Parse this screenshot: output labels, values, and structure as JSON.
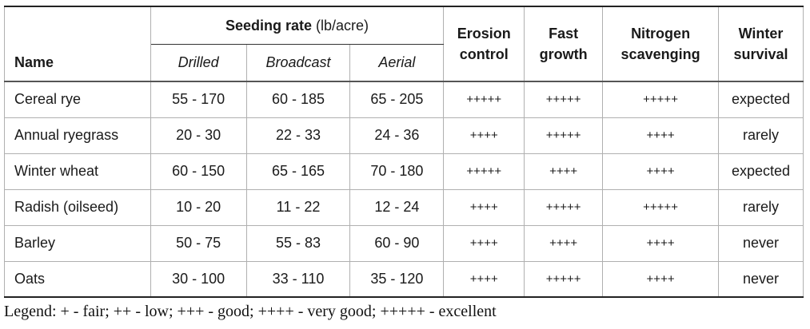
{
  "table": {
    "headers": {
      "name": "Name",
      "seeding_rate_bold": "Seeding rate",
      "seeding_rate_unit": "(lb/acre)",
      "drilled": "Drilled",
      "broadcast": "Broadcast",
      "aerial": "Aerial",
      "erosion_line1": "Erosion",
      "erosion_line2": "control",
      "fast_line1": "Fast",
      "fast_line2": "growth",
      "nitrogen_line1": "Nitrogen",
      "nitrogen_line2": "scavenging",
      "winter_line1": "Winter",
      "winter_line2": "survival"
    },
    "rows": [
      {
        "name": "Cereal rye",
        "drilled": "55 - 170",
        "broadcast": "60 - 185",
        "aerial": "65 - 205",
        "erosion": "+++++",
        "fast": "+++++",
        "nitrogen": "+++++",
        "winter": "expected"
      },
      {
        "name": "Annual ryegrass",
        "drilled": "20 - 30",
        "broadcast": "22 - 33",
        "aerial": "24 - 36",
        "erosion": "++++",
        "fast": "+++++",
        "nitrogen": "++++",
        "winter": "rarely"
      },
      {
        "name": "Winter wheat",
        "drilled": "60 - 150",
        "broadcast": "65 - 165",
        "aerial": "70 - 180",
        "erosion": "+++++",
        "fast": "++++",
        "nitrogen": "++++",
        "winter": "expected"
      },
      {
        "name": "Radish (oilseed)",
        "drilled": "10 - 20",
        "broadcast": "11 - 22",
        "aerial": "12 - 24",
        "erosion": "++++",
        "fast": "+++++",
        "nitrogen": "+++++",
        "winter": "rarely"
      },
      {
        "name": "Barley",
        "drilled": "50 - 75",
        "broadcast": "55 - 83",
        "aerial": "60 - 90",
        "erosion": "++++",
        "fast": "++++",
        "nitrogen": "++++",
        "winter": "never"
      },
      {
        "name": "Oats",
        "drilled": "30 - 100",
        "broadcast": "33 - 110",
        "aerial": "35 - 120",
        "erosion": "++++",
        "fast": "+++++",
        "nitrogen": "++++",
        "winter": "never"
      }
    ]
  },
  "legend": "Legend: + - fair; ++ - low; +++ - good; ++++ - very good; +++++ - excellent"
}
